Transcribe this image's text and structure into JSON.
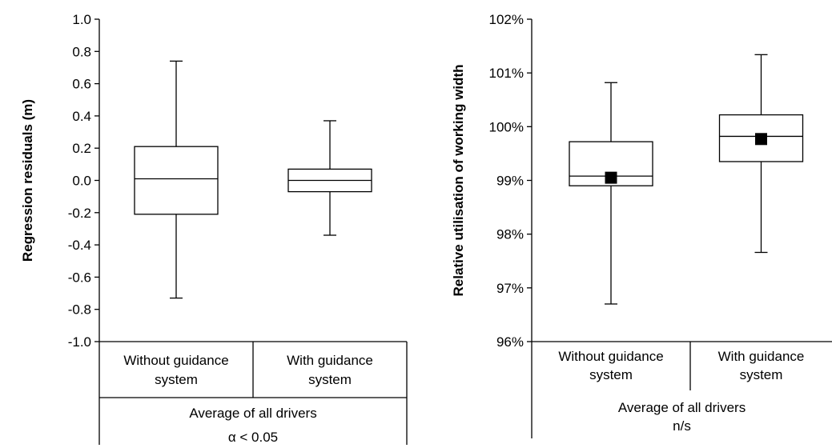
{
  "chart_data": [
    {
      "type": "boxplot",
      "ylabel": "Regression residuals (m)",
      "ylim": [
        -1.0,
        1.0
      ],
      "yticks": [
        "1.0",
        "0.8",
        "0.6",
        "0.4",
        "0.2",
        "0.0",
        "-0.2",
        "-0.4",
        "-0.6",
        "-0.8",
        "-1.0"
      ],
      "ytick_values": [
        1.0,
        0.8,
        0.6,
        0.4,
        0.2,
        0.0,
        -0.2,
        -0.4,
        -0.6,
        -0.8,
        -1.0
      ],
      "categories": [
        [
          "Without guidance",
          "system"
        ],
        [
          "With guidance",
          "system"
        ]
      ],
      "group_label": "Average of all drivers",
      "significance": "α < 0.05",
      "boxes": [
        {
          "min": -0.73,
          "q1": -0.21,
          "median": 0.01,
          "q3": 0.21,
          "max": 0.74
        },
        {
          "min": -0.34,
          "q1": -0.07,
          "median": 0.0,
          "q3": 0.07,
          "max": 0.37
        }
      ],
      "grid": false
    },
    {
      "type": "boxplot",
      "ylabel": "Relative utilisation of working width",
      "ylim": [
        96,
        102
      ],
      "yticks": [
        "102%",
        "101%",
        "100%",
        "99%",
        "98%",
        "97%",
        "96%"
      ],
      "ytick_values": [
        102,
        101,
        100,
        99,
        98,
        97,
        96
      ],
      "categories": [
        [
          "Without guidance",
          "system"
        ],
        [
          "With guidance",
          "system"
        ]
      ],
      "group_label": "Average of all drivers",
      "significance": "n/s",
      "boxes": [
        {
          "min": 96.7,
          "q1": 98.9,
          "median": 99.08,
          "q3": 99.72,
          "max": 100.82,
          "mean": 99.05
        },
        {
          "min": 97.66,
          "q1": 99.35,
          "median": 99.82,
          "q3": 100.22,
          "max": 101.34,
          "mean": 99.77
        }
      ],
      "grid": false
    }
  ]
}
